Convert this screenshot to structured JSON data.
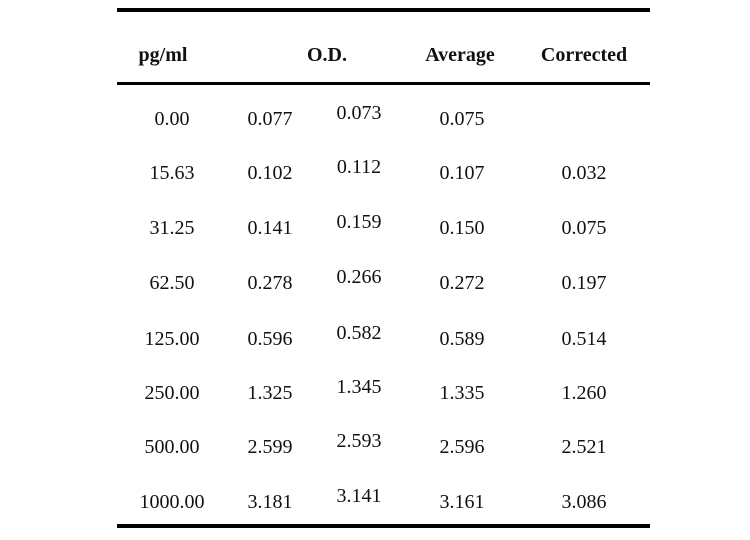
{
  "table": {
    "headers": {
      "concentration": "pg/ml",
      "od": "O.D.",
      "average": "Average",
      "corrected": "Corrected"
    },
    "rows": [
      {
        "conc": "0.00",
        "od1": "0.077",
        "od2": "0.073",
        "avg": "0.075",
        "corr": ""
      },
      {
        "conc": "15.63",
        "od1": "0.102",
        "od2": "0.112",
        "avg": "0.107",
        "corr": "0.032"
      },
      {
        "conc": "31.25",
        "od1": "0.141",
        "od2": "0.159",
        "avg": "0.150",
        "corr": "0.075"
      },
      {
        "conc": "62.50",
        "od1": "0.278",
        "od2": "0.266",
        "avg": "0.272",
        "corr": "0.197"
      },
      {
        "conc": "125.00",
        "od1": "0.596",
        "od2": "0.582",
        "avg": "0.589",
        "corr": "0.514"
      },
      {
        "conc": "250.00",
        "od1": "1.325",
        "od2": "1.345",
        "avg": "1.335",
        "corr": "1.260"
      },
      {
        "conc": "500.00",
        "od1": "2.599",
        "od2": "2.593",
        "avg": "2.596",
        "corr": "2.521"
      },
      {
        "conc": "1000.00",
        "od1": "3.181",
        "od2": "3.141",
        "avg": "3.161",
        "corr": "3.086"
      }
    ]
  }
}
